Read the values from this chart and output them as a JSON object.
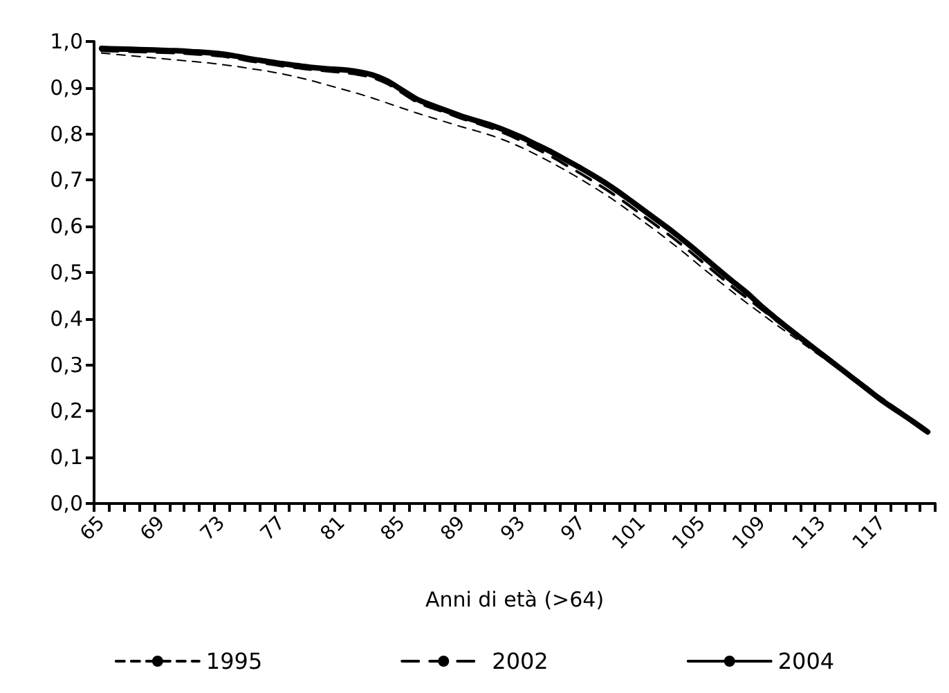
{
  "chart_data": {
    "type": "line",
    "xlabel": "Anni di età (>64)",
    "categories": [
      "65",
      null,
      null,
      null,
      "69",
      null,
      null,
      null,
      "73",
      null,
      null,
      null,
      "77",
      null,
      null,
      null,
      "81",
      null,
      null,
      null,
      "85",
      null,
      null,
      null,
      "89",
      null,
      null,
      null,
      "93",
      null,
      null,
      null,
      "97",
      null,
      null,
      null,
      "101",
      null,
      null,
      null,
      "105",
      null,
      null,
      null,
      "109",
      null,
      null,
      null,
      "113",
      null,
      null,
      null,
      "117",
      null,
      null,
      null
    ],
    "ylim": [
      0,
      1
    ],
    "yticks": [
      {
        "value": 0,
        "label": "0,0"
      },
      {
        "value": 0.1,
        "label": "0,1"
      },
      {
        "value": 0.2,
        "label": "0,2"
      },
      {
        "value": 0.3,
        "label": "0,3"
      },
      {
        "value": 0.4,
        "label": "0,4"
      },
      {
        "value": 0.5,
        "label": "0,5"
      },
      {
        "value": 0.6,
        "label": "0,6"
      },
      {
        "value": 0.7,
        "label": "0,7"
      },
      {
        "value": 0.8,
        "label": "0,8"
      },
      {
        "value": 0.9,
        "label": "0,9"
      },
      {
        "value": 1,
        "label": "1,0"
      }
    ],
    "grid": false,
    "legend": "bottom",
    "marker": "none",
    "series": [
      {
        "name": "1995",
        "color": "#000000",
        "line_style": "dashed",
        "values": [
          0.975,
          0.972,
          0.969,
          0.966,
          0.963,
          0.96,
          0.957,
          0.954,
          0.95,
          0.946,
          0.941,
          0.936,
          0.93,
          0.923,
          0.915,
          0.906,
          0.897,
          0.888,
          0.878,
          0.867,
          0.856,
          0.845,
          0.835,
          0.825,
          0.815,
          0.806,
          0.796,
          0.784,
          0.77,
          0.754,
          0.737,
          0.719,
          0.7,
          0.68,
          0.659,
          0.636,
          0.612,
          0.588,
          0.563,
          0.537,
          0.51,
          0.484,
          0.458,
          0.433,
          0.409,
          0.385,
          0.362,
          0.339,
          0.316,
          0.294,
          0.272,
          0.25,
          0.228,
          0.205,
          0.182,
          0.158
        ]
      },
      {
        "name": "2002",
        "color": "#000000",
        "line_style": "dashed",
        "values": [
          0.98,
          0.979,
          0.978,
          0.977,
          0.976,
          0.975,
          0.973,
          0.971,
          0.968,
          0.963,
          0.957,
          0.952,
          0.947,
          0.943,
          0.939,
          0.936,
          0.933,
          0.929,
          0.922,
          0.909,
          0.889,
          0.869,
          0.856,
          0.845,
          0.833,
          0.823,
          0.812,
          0.799,
          0.784,
          0.767,
          0.75,
          0.731,
          0.712,
          0.692,
          0.671,
          0.648,
          0.624,
          0.6,
          0.576,
          0.55,
          0.523,
          0.496,
          0.469,
          0.444,
          0.419,
          0.394,
          0.37,
          0.346,
          0.321,
          0.297,
          0.273,
          0.249,
          0.225,
          0.2,
          0.178,
          0.155
        ]
      },
      {
        "name": "2004",
        "color": "#000000",
        "line_style": "solid",
        "values": [
          0.985,
          0.984,
          0.983,
          0.982,
          0.981,
          0.98,
          0.978,
          0.976,
          0.973,
          0.968,
          0.962,
          0.957,
          0.952,
          0.948,
          0.944,
          0.941,
          0.939,
          0.935,
          0.928,
          0.915,
          0.895,
          0.875,
          0.862,
          0.85,
          0.838,
          0.828,
          0.818,
          0.806,
          0.792,
          0.776,
          0.76,
          0.742,
          0.724,
          0.705,
          0.684,
          0.661,
          0.637,
          0.613,
          0.589,
          0.563,
          0.536,
          0.508,
          0.481,
          0.455,
          0.425,
          0.398,
          0.372,
          0.347,
          0.322,
          0.297,
          0.272,
          0.247,
          0.222,
          0.2,
          0.178,
          0.155
        ]
      }
    ]
  }
}
